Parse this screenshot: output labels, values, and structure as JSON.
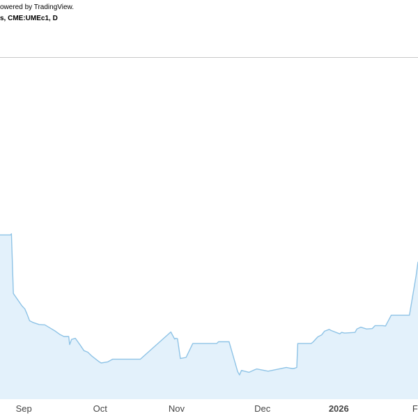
{
  "header": {
    "attribution": "owered by TradingView.",
    "symbol": "s, CME:UMEc1, D"
  },
  "colors": {
    "line": "#8ec3e6",
    "fill": "#e3f1fb",
    "reference_line": "#c8c8c8",
    "axis_text": "#444444",
    "background": "#ffffff"
  },
  "chart_data": {
    "type": "area",
    "title": "",
    "xlabel": "",
    "ylabel": "",
    "grid": false,
    "x_tick_labels": [
      {
        "label": "Sep",
        "x": 2025.67,
        "bold": false
      },
      {
        "label": "Oct",
        "x": 2025.75,
        "bold": false
      },
      {
        "label": "Nov",
        "x": 2025.83,
        "bold": false
      },
      {
        "label": "Dec",
        "x": 2025.92,
        "bold": false
      },
      {
        "label": "2026",
        "x": 2026.0,
        "bold": true
      },
      {
        "label": "F",
        "x": 2026.08,
        "bold": false
      }
    ],
    "xlim": [
      2025.645,
      2026.083
    ],
    "ylim": [
      0,
      100
    ],
    "reference_level": 91.5,
    "series": [
      {
        "x": [
          2025.645,
          2025.656,
          2025.657,
          2025.659,
          2025.668,
          2025.671,
          2025.673,
          2025.676,
          2025.68,
          2025.686,
          2025.692,
          2025.698,
          2025.703,
          2025.708,
          2025.712,
          2025.717,
          2025.718,
          2025.72,
          2025.724,
          2025.729,
          2025.733,
          2025.737,
          2025.741,
          2025.749,
          2025.751,
          2025.758,
          2025.763,
          2025.771,
          2025.792,
          2025.824,
          2025.828,
          2025.829,
          2025.831,
          2025.834,
          2025.84,
          2025.847,
          2025.872,
          2025.874,
          2025.885,
          2025.894,
          2025.896,
          2025.898,
          2025.906,
          2025.911,
          2025.914,
          2025.92,
          2025.926,
          2025.945,
          2025.949,
          2025.952,
          2025.954,
          2025.956,
          2025.957,
          2025.971,
          2025.973,
          2025.978,
          2025.982,
          2025.985,
          2025.99,
          2025.992,
          2026.001,
          2026.003,
          2026.006,
          2026.017,
          2026.019,
          2026.023,
          2026.029,
          2026.035,
          2026.038,
          2026.046,
          2026.049,
          2026.055,
          2026.058,
          2026.074,
          2026.081,
          2026.083
        ],
        "values": [
          44.0,
          44.0,
          44.3,
          28.3,
          25.0,
          24.2,
          23.0,
          21.0,
          20.5,
          20.0,
          19.9,
          19.0,
          18.2,
          17.3,
          16.8,
          16.8,
          14.6,
          16.0,
          16.3,
          14.5,
          13.0,
          12.6,
          11.6,
          10.0,
          9.7,
          10.0,
          10.7,
          10.7,
          10.7,
          18.0,
          16.1,
          16.3,
          16.2,
          10.9,
          11.2,
          14.9,
          14.9,
          15.4,
          15.4,
          7.4,
          6.5,
          7.7,
          7.2,
          7.8,
          8.1,
          7.8,
          7.5,
          8.5,
          8.3,
          8.2,
          8.3,
          8.5,
          14.9,
          14.9,
          15.3,
          16.7,
          17.2,
          18.2,
          18.7,
          18.4,
          17.5,
          17.9,
          17.7,
          17.9,
          18.8,
          19.3,
          18.8,
          18.9,
          19.7,
          19.7,
          19.6,
          22.5,
          22.5,
          22.5,
          33.1,
          36.8
        ]
      }
    ]
  }
}
